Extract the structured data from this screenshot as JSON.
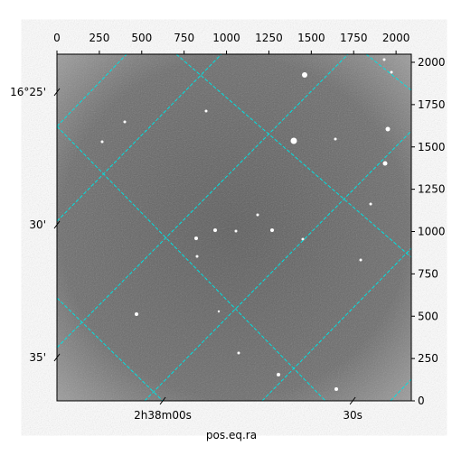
{
  "chart_data": {
    "type": "image",
    "xlabel": "pos.eq.ra",
    "xlim": [
      0,
      2090
    ],
    "ylim": [
      0,
      2048
    ],
    "xticks": [
      0,
      250,
      500,
      750,
      1000,
      1250,
      1500,
      1750,
      2000
    ],
    "yticks": [
      0,
      250,
      500,
      750,
      1000,
      1250,
      1500,
      1750,
      2000
    ],
    "ra_ticks": [
      {
        "value": 624,
        "label": "2h38m00s"
      },
      {
        "value": 1744,
        "label": "30s"
      }
    ],
    "dec_ticks": [
      {
        "value": 1824,
        "label": "16°25'"
      },
      {
        "value": 1040,
        "label": "30'"
      },
      {
        "value": 256,
        "label": "35'"
      }
    ]
  }
}
